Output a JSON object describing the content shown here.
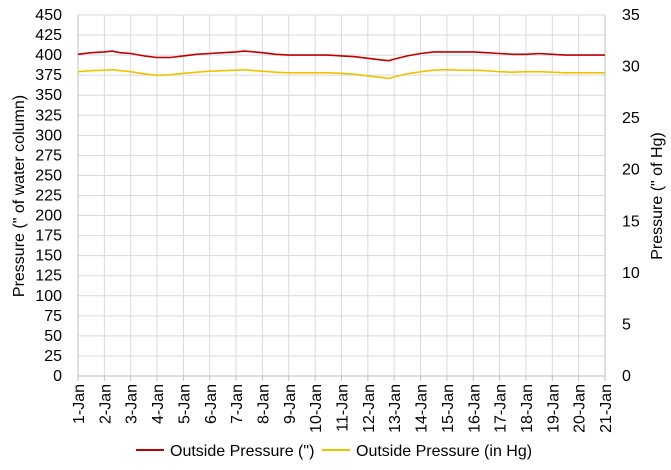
{
  "chart_data": {
    "type": "line",
    "title": "",
    "xlabel": "",
    "ylabel": "Pressure (\" of water column)",
    "y2label": "Pressure (\" of Hg)",
    "ylim": [
      0,
      450
    ],
    "y2lim": [
      0,
      35
    ],
    "yticks": [
      0,
      25,
      50,
      75,
      100,
      125,
      150,
      175,
      200,
      225,
      250,
      275,
      300,
      325,
      350,
      375,
      400,
      425,
      450
    ],
    "y2ticks": [
      0,
      5,
      10,
      15,
      20,
      25,
      30,
      35
    ],
    "categories": [
      "1-Jan",
      "2-Jan",
      "3-Jan",
      "4-Jan",
      "5-Jan",
      "6-Jan",
      "7-Jan",
      "8-Jan",
      "9-Jan",
      "10-Jan",
      "11-Jan",
      "12-Jan",
      "13-Jan",
      "14-Jan",
      "15-Jan",
      "16-Jan",
      "17-Jan",
      "18-Jan",
      "19-Jan",
      "20-Jan",
      "21-Jan"
    ],
    "x": [
      1,
      1.5,
      2,
      2.3,
      2.6,
      3,
      3.5,
      4,
      4.5,
      5,
      5.5,
      6,
      6.5,
      7,
      7.3,
      7.7,
      8,
      8.5,
      9,
      9.5,
      10,
      10.5,
      11,
      11.5,
      12,
      12.5,
      12.8,
      13,
      13.5,
      14,
      14.5,
      15,
      15.5,
      16,
      16.5,
      17,
      17.5,
      18,
      18.5,
      19,
      19.5,
      20,
      20.5,
      21
    ],
    "grid": true,
    "legend_position": "bottom",
    "series": [
      {
        "name": "Outside Pressure (\")",
        "axis": "left",
        "color": "#c00000",
        "values": [
          401,
          403,
          404,
          405,
          403,
          402,
          399,
          397,
          397,
          399,
          401,
          402,
          403,
          404,
          405,
          404,
          403,
          401,
          400,
          400,
          400,
          400,
          399,
          398,
          396,
          394,
          393,
          395,
          399,
          402,
          404,
          404,
          404,
          404,
          403,
          402,
          401,
          401,
          402,
          401,
          400,
          400,
          400,
          400
        ]
      },
      {
        "name": "Outside Pressure (in Hg)",
        "axis": "right",
        "color": "#f2c200",
        "values": [
          29.5,
          29.6,
          29.65,
          29.7,
          29.6,
          29.5,
          29.3,
          29.15,
          29.2,
          29.35,
          29.45,
          29.55,
          29.6,
          29.65,
          29.7,
          29.6,
          29.55,
          29.45,
          29.4,
          29.4,
          29.4,
          29.4,
          29.35,
          29.25,
          29.1,
          28.95,
          28.85,
          29.0,
          29.3,
          29.5,
          29.65,
          29.7,
          29.65,
          29.65,
          29.6,
          29.5,
          29.45,
          29.5,
          29.5,
          29.45,
          29.4,
          29.4,
          29.4,
          29.4
        ]
      }
    ]
  }
}
